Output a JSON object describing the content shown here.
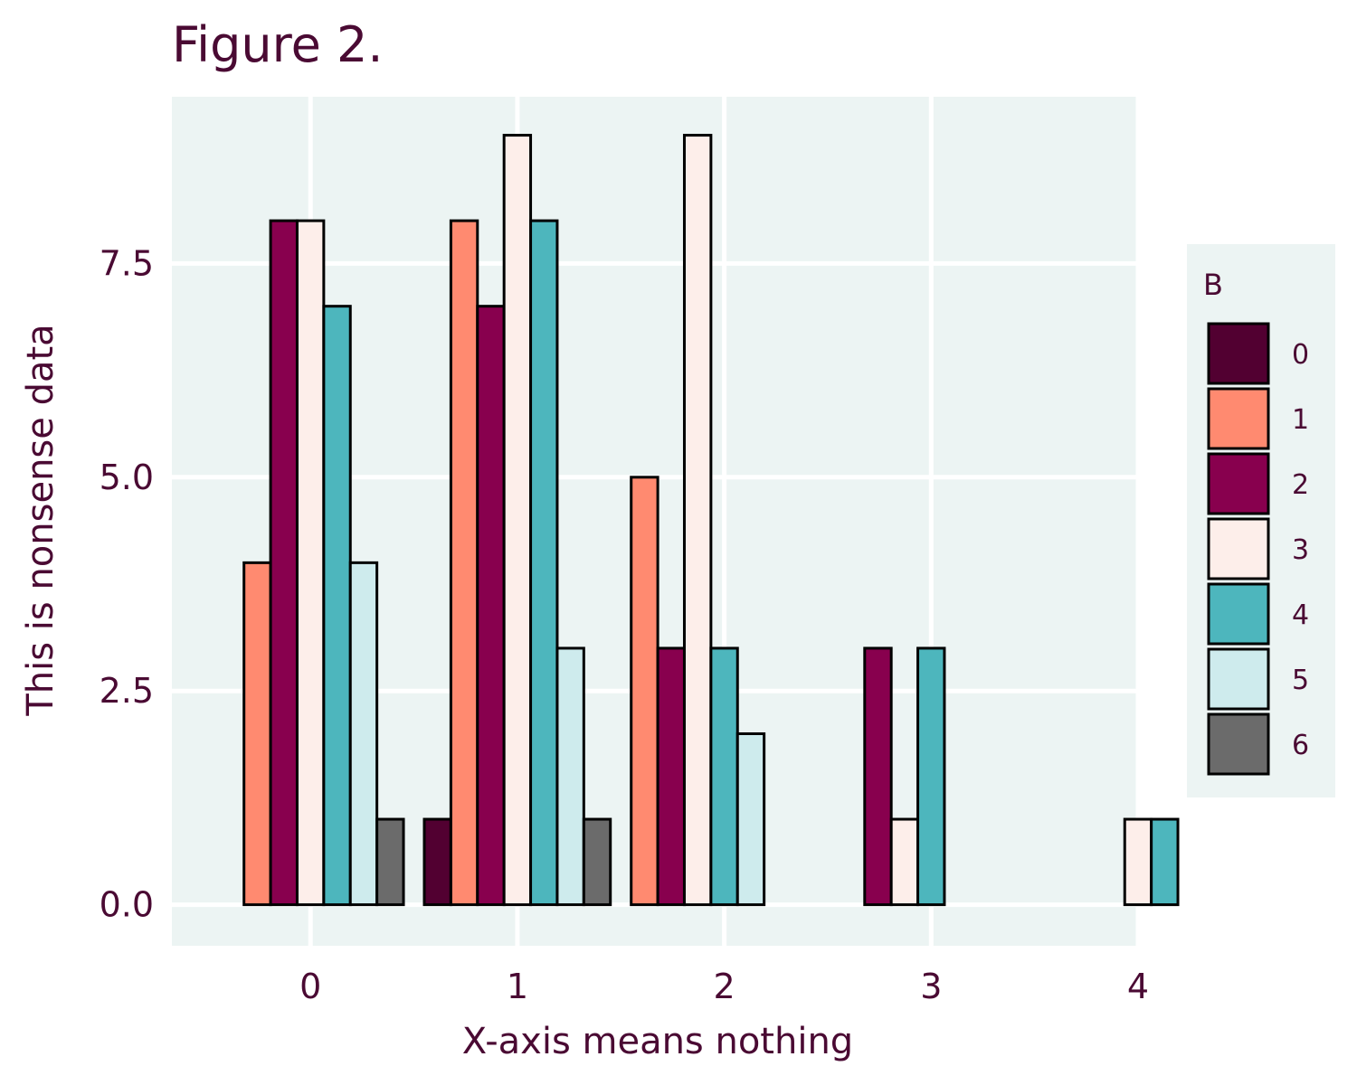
{
  "chart_data": {
    "type": "bar",
    "title": "Figure 2.",
    "xlabel": "X-axis means nothing",
    "ylabel": "This is nonsense data",
    "xlim": [
      -0.67,
      4.0
    ],
    "ylim": [
      -0.48,
      9.45
    ],
    "x_ticks": [
      "0",
      "1",
      "2",
      "3",
      "4"
    ],
    "y_ticks": [
      "0.0",
      "2.5",
      "5.0",
      "7.5"
    ],
    "grid": true,
    "legend_position": "right",
    "legend_title": "B",
    "series": [
      {
        "name": "0",
        "color": "#520031",
        "values": [
          null,
          1,
          null,
          null,
          null
        ]
      },
      {
        "name": "1",
        "color": "#FF8A70",
        "values": [
          4,
          8,
          5,
          null,
          null
        ]
      },
      {
        "name": "2",
        "color": "#88004E",
        "values": [
          8,
          7,
          3,
          3,
          null
        ]
      },
      {
        "name": "3",
        "color": "#FDEEEA",
        "values": [
          8,
          9,
          9,
          1,
          1
        ]
      },
      {
        "name": "4",
        "color": "#4DB6BD",
        "values": [
          7,
          8,
          3,
          3,
          1
        ]
      },
      {
        "name": "5",
        "color": "#CEEBED",
        "values": [
          4,
          3,
          2,
          null,
          null
        ]
      },
      {
        "name": "6",
        "color": "#6B6B6B",
        "values": [
          1,
          1,
          null,
          null,
          null
        ]
      }
    ],
    "groups": [
      {
        "x": 0,
        "present": [
          "1",
          "2",
          "3",
          "4",
          "5",
          "6"
        ]
      },
      {
        "x": 1,
        "present": [
          "0",
          "1",
          "2",
          "3",
          "4",
          "5",
          "6"
        ]
      },
      {
        "x": 2,
        "present": [
          "1",
          "2",
          "3",
          "4",
          "5"
        ]
      },
      {
        "x": 3,
        "present": [
          "2",
          "3",
          "4"
        ]
      },
      {
        "x": 4,
        "present": [
          "3",
          "4"
        ]
      }
    ],
    "colors": {
      "panel_background": "#ECF4F3",
      "legend_background": "#ECF4F3",
      "grid": "#FFFFFF",
      "text": "#4A0A33",
      "bar_outline": "#000000"
    }
  }
}
